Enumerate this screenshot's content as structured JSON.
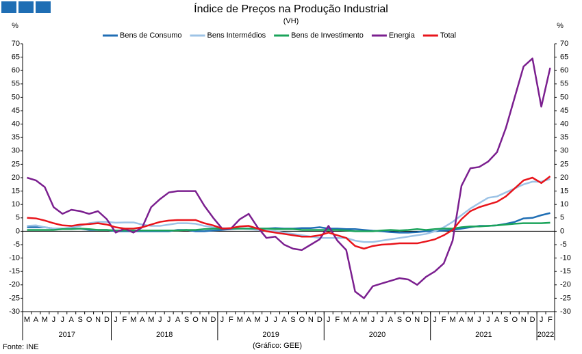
{
  "chart_data": {
    "type": "line",
    "title": "Índice de Preços na Produção Industrial",
    "subtitle": "(VH)",
    "y_label": "%",
    "y2_label": "%",
    "source": "Fonte: INE",
    "credit": "(Gráfico: GEE)",
    "categories": [
      "M",
      "A",
      "M",
      "J",
      "J",
      "A",
      "S",
      "O",
      "N",
      "D",
      "J",
      "F",
      "M",
      "A",
      "M",
      "J",
      "J",
      "A",
      "S",
      "O",
      "N",
      "D",
      "J",
      "F",
      "M",
      "A",
      "M",
      "J",
      "J",
      "A",
      "S",
      "O",
      "N",
      "D",
      "J",
      "F",
      "M",
      "A",
      "M",
      "J",
      "J",
      "A",
      "S",
      "O",
      "N",
      "D",
      "J",
      "F",
      "M",
      "A",
      "M",
      "J",
      "J",
      "A",
      "S",
      "O",
      "N",
      "D",
      "J",
      "F"
    ],
    "years": [
      "2017",
      "2018",
      "2019",
      "2020",
      "2021",
      "2022"
    ],
    "ylim": [
      -30,
      70
    ],
    "yticks": [
      -30,
      -25,
      -20,
      -15,
      -10,
      -5,
      0,
      5,
      10,
      15,
      20,
      25,
      30,
      35,
      40,
      45,
      50,
      55,
      60,
      65,
      70
    ],
    "y2lim": [
      -30,
      70
    ],
    "y2ticks": [
      -30,
      -25,
      -20,
      -15,
      -10,
      -5,
      0,
      5,
      10,
      15,
      20,
      25,
      30,
      35,
      40,
      45,
      50,
      55,
      60,
      65,
      70
    ],
    "series": [
      {
        "name": "Bens de Consumo",
        "color": "#1f6eb4",
        "values": [
          1.5,
          1.5,
          1.5,
          1,
          1,
          1,
          1,
          0.5,
          0.5,
          0.5,
          0,
          0,
          0,
          0,
          0,
          0,
          0,
          0.5,
          0.5,
          0,
          0,
          0.3,
          0.5,
          0.8,
          1,
          1,
          1,
          1,
          1.2,
          1,
          1,
          1.2,
          1.2,
          1.5,
          1,
          1,
          0.8,
          0.8,
          0.5,
          0.2,
          0,
          -0.3,
          -0.5,
          -0.5,
          -0.3,
          0,
          0,
          0.3,
          0.5,
          1,
          1.5,
          2,
          2,
          2.2,
          2.8,
          3.5,
          4.8,
          5,
          6,
          6.8
        ]
      },
      {
        "name": "Bens Intermédios",
        "color": "#9dc3e6",
        "values": [
          2,
          2.2,
          1.5,
          1,
          1,
          1.5,
          2,
          3,
          3.5,
          3.5,
          3.2,
          3.3,
          3.3,
          2.5,
          2,
          2,
          2.5,
          3,
          3,
          2.8,
          2,
          1.5,
          1.2,
          1,
          1,
          0.8,
          0.5,
          0.2,
          0,
          -0.5,
          -1,
          -1.5,
          -2,
          -2.5,
          -2.5,
          -2.5,
          -2.5,
          -3.5,
          -4,
          -4,
          -3.5,
          -3,
          -2.5,
          -2,
          -1.5,
          -1,
          0,
          1.5,
          3.5,
          6,
          8.5,
          10.5,
          12.5,
          13,
          14.5,
          16,
          17.5,
          18.5,
          18.5,
          19.5
        ]
      },
      {
        "name": "Bens de Investimento",
        "color": "#1aa35a",
        "values": [
          0.5,
          0.5,
          0.5,
          0.5,
          0.8,
          0.8,
          1,
          0.8,
          0.5,
          0.5,
          0.3,
          0.3,
          0.3,
          0.3,
          0.3,
          0.3,
          0.3,
          0.3,
          0.5,
          0.5,
          0.8,
          1,
          1,
          1,
          1,
          1,
          1,
          1,
          0.8,
          0.8,
          0.8,
          0.5,
          0.5,
          0.5,
          0.5,
          0.5,
          0.3,
          0,
          0,
          0,
          0.3,
          0.5,
          0.3,
          0.5,
          0.8,
          0.5,
          0.8,
          1,
          1,
          1.5,
          1.8,
          1.8,
          2,
          2.2,
          2.5,
          2.8,
          3,
          3,
          3,
          3.2
        ]
      },
      {
        "name": "Energia",
        "color": "#7b1f8f",
        "values": [
          20,
          19,
          16.5,
          9,
          6.5,
          8,
          7.5,
          6.5,
          7.5,
          4.5,
          -0.5,
          1,
          -0.5,
          1.5,
          9,
          12,
          14.5,
          15,
          15,
          15,
          9.5,
          5,
          1,
          1,
          4.5,
          6.5,
          1.5,
          -2.5,
          -2,
          -5,
          -6.5,
          -7,
          -5,
          -3,
          2,
          -3.5,
          -7,
          -22.5,
          -25,
          -20.5,
          -19.5,
          -18.5,
          -17.5,
          -18,
          -20,
          -17,
          -15,
          -12,
          -3.5,
          17,
          23.5,
          24,
          26,
          29.5,
          38.5,
          50,
          61.5,
          64.5,
          46.5,
          61
        ]
      },
      {
        "name": "Total",
        "color": "#e8141b",
        "values": [
          5,
          4.8,
          4,
          3,
          2.2,
          2,
          2.5,
          2.7,
          3,
          2.5,
          1.5,
          1,
          1,
          1.5,
          2.5,
          3.5,
          4,
          4.2,
          4.2,
          4.2,
          3,
          2.2,
          1,
          1.2,
          1.8,
          2,
          1,
          0,
          -0.5,
          -1,
          -1.5,
          -2,
          -2,
          -1.5,
          -0.5,
          -1.5,
          -2.5,
          -5.5,
          -6.5,
          -5.5,
          -5,
          -4.8,
          -4.5,
          -4.5,
          -4.5,
          -3.8,
          -3,
          -1.5,
          0.5,
          4.5,
          7.5,
          9,
          10,
          11,
          13,
          16,
          19,
          20,
          18,
          20.5
        ]
      }
    ]
  }
}
